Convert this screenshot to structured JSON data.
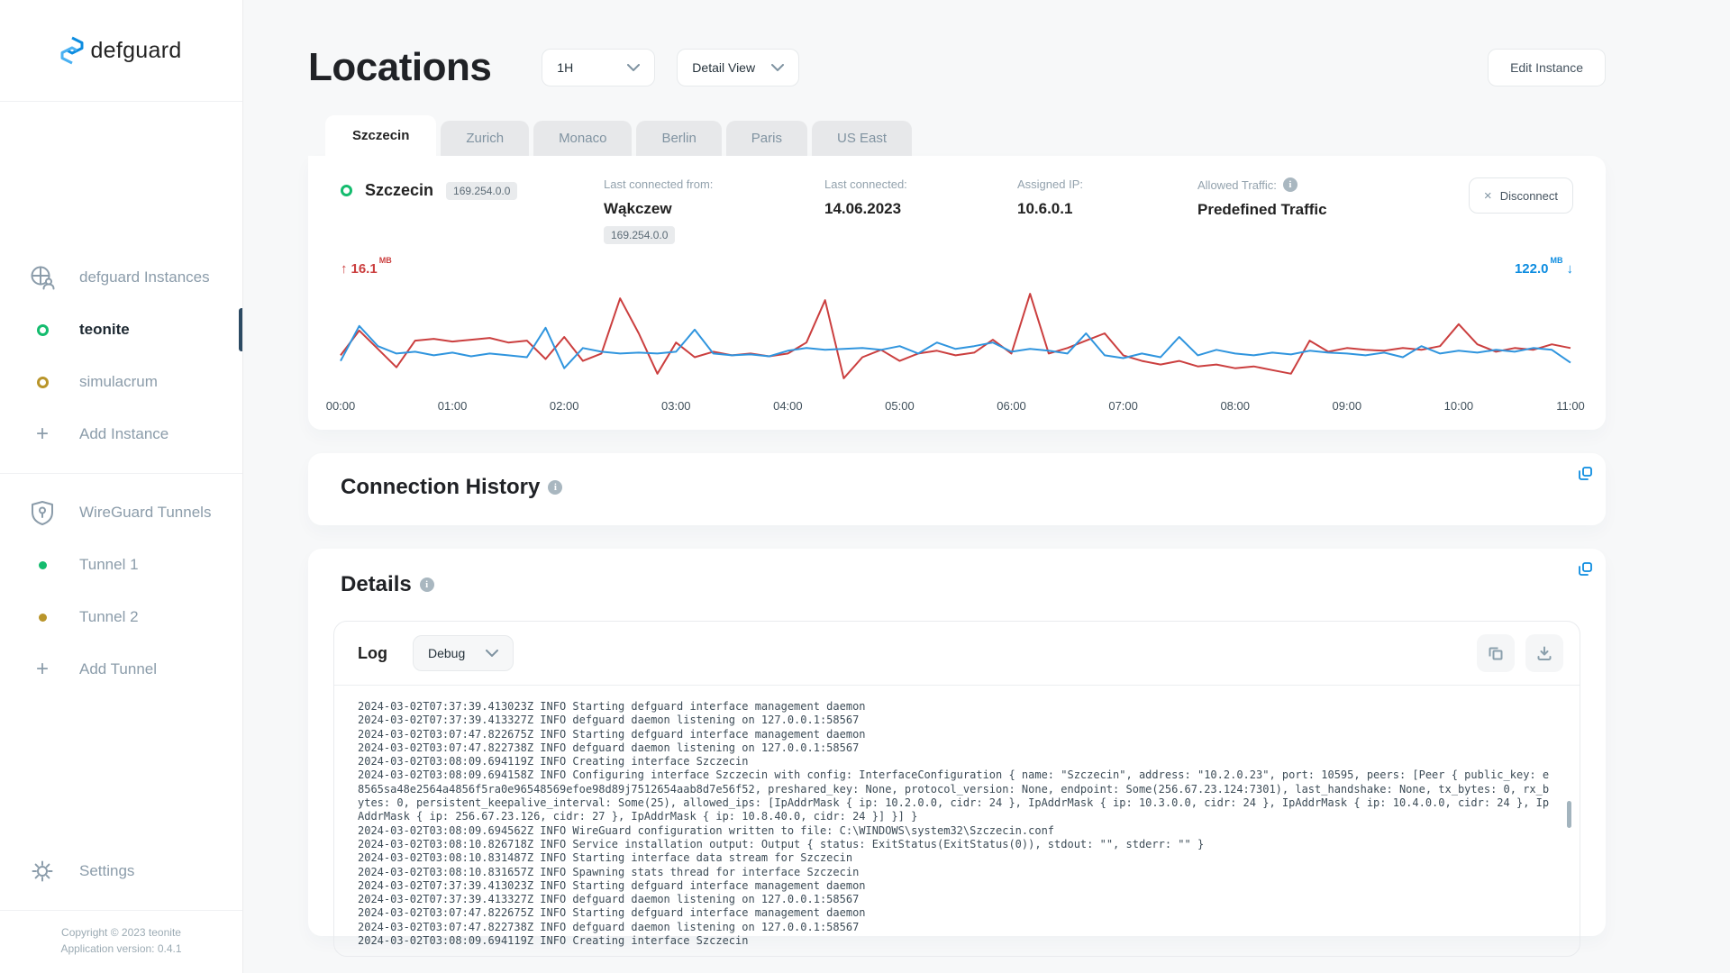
{
  "app": {
    "name": "defguard",
    "copyright": "Copyright © 2023 teonite",
    "version_line": "Application version: 0.4.1"
  },
  "colors": {
    "accent_blue": "#0c8ce0",
    "upload_red": "#cb3f3f",
    "download_blue": "#3095de",
    "status_green": "#14bc6e",
    "status_yellow": "#b9952a",
    "active_bar": "#2c4a63"
  },
  "sidebar": {
    "instances_header": "defguard Instances",
    "instances": [
      {
        "label": "teonite",
        "status": "green",
        "active": true
      },
      {
        "label": "simulacrum",
        "status": "yellow",
        "active": false
      }
    ],
    "add_instance_label": "Add Instance",
    "tunnels_header": "WireGuard Tunnels",
    "tunnels": [
      {
        "label": "Tunnel 1",
        "status": "green"
      },
      {
        "label": "Tunnel 2",
        "status": "yellow"
      }
    ],
    "add_tunnel_label": "Add Tunnel",
    "settings_label": "Settings",
    "plus_glyph": "+"
  },
  "header": {
    "title": "Locations",
    "period_select_value": "1H",
    "view_select_value": "Detail View",
    "edit_instance_label": "Edit Instance"
  },
  "tabs": [
    {
      "label": "Szczecin",
      "active": true
    },
    {
      "label": "Zurich",
      "active": false
    },
    {
      "label": "Monaco",
      "active": false
    },
    {
      "label": "Berlin",
      "active": false
    },
    {
      "label": "Paris",
      "active": false
    },
    {
      "label": "US East",
      "active": false
    }
  ],
  "location_card": {
    "name": "Szczecin",
    "ip_badge": "169.254.0.0",
    "fields": [
      {
        "label": "Last connected from:",
        "value": "Wąkczew",
        "badge": "169.254.0.0"
      },
      {
        "label": "Last connected:",
        "value": "14.06.2023"
      },
      {
        "label": "Assigned IP:",
        "value": "10.6.0.1"
      },
      {
        "label": "Allowed Traffic:",
        "value": "Predefined Traffic"
      }
    ],
    "disconnect_label": "Disconnect",
    "x_glyph": "×",
    "upload_value": "16.1",
    "upload_unit": "MB",
    "download_value": "122.0",
    "download_unit": "MB",
    "upload_arrow": "↑",
    "download_arrow": "↓"
  },
  "chart_data": {
    "type": "line",
    "x_tick_labels": [
      "00:00",
      "01:00",
      "02:00",
      "03:00",
      "04:00",
      "05:00",
      "06:00",
      "07:00",
      "08:00",
      "09:00",
      "10:00",
      "11:00"
    ],
    "x_range_hours": [
      0,
      11
    ],
    "y_axis": "hidden (relative scale 0-100 estimated from pixel heights)",
    "grid": false,
    "legend": "none (red = upload 16.1 MB, blue = download 122.0 MB)",
    "series": [
      {
        "name": "upload",
        "color": "#cb3f3f",
        "values": [
          28,
          55,
          35,
          15,
          44,
          46,
          43,
          45,
          47,
          42,
          44,
          24,
          48,
          22,
          30,
          90,
          52,
          8,
          42,
          26,
          32,
          28,
          30,
          27,
          30,
          42,
          88,
          3,
          26,
          34,
          22,
          30,
          33,
          28,
          31,
          45,
          30,
          95,
          30,
          36,
          44,
          52,
          28,
          22,
          18,
          22,
          16,
          18,
          14,
          16,
          12,
          8,
          44,
          32,
          36,
          34,
          33,
          36,
          34,
          38,
          62,
          40,
          32,
          36,
          34,
          40,
          36
        ]
      },
      {
        "name": "download",
        "color": "#3095de",
        "values": [
          22,
          60,
          38,
          30,
          32,
          28,
          31,
          27,
          30,
          28,
          26,
          58,
          14,
          36,
          32,
          30,
          31,
          30,
          32,
          56,
          30,
          28,
          29,
          27,
          33,
          36,
          34,
          35,
          36,
          34,
          38,
          30,
          42,
          35,
          38,
          42,
          32,
          35,
          33,
          30,
          52,
          28,
          25,
          30,
          26,
          48,
          28,
          34,
          30,
          28,
          31,
          29,
          33,
          31,
          30,
          28,
          31,
          26,
          38,
          30,
          33,
          31,
          34,
          32,
          36,
          34,
          20
        ]
      }
    ]
  },
  "connection_history": {
    "title": "Connection History"
  },
  "details": {
    "title": "Details",
    "log": {
      "label": "Log",
      "level_select_value": "Debug",
      "lines": [
        "2024-03-02T07:37:39.413023Z INFO Starting defguard interface management daemon",
        "2024-03-02T07:37:39.413327Z INFO defguard daemon listening on 127.0.0.1:58567",
        "2024-03-02T03:07:47.822675Z INFO Starting defguard interface management daemon",
        "2024-03-02T03:07:47.822738Z INFO defguard daemon listening on 127.0.0.1:58567",
        "2024-03-02T03:08:09.694119Z INFO Creating interface Szczecin",
        "2024-03-02T03:08:09.694158Z INFO Configuring interface Szczecin with config: InterfaceConfiguration { name: \"Szczecin\", address: \"10.2.0.23\", port: 10595, peers: [Peer { public_key: e8565sa48e2564a4856f5ra0e96548569efoe98d89j7512654aab8d7e56f52, preshared_key: None, protocol_version: None, endpoint: Some(256.67.23.124:7301), last_handshake: None, tx_bytes: 0, rx_bytes: 0, persistent_keepalive_interval: Some(25), allowed_ips: [IpAddrMask { ip: 10.2.0.0, cidr: 24 }, IpAddrMask { ip: 10.3.0.0, cidr: 24 }, IpAddrMask { ip: 10.4.0.0, cidr: 24 }, IpAddrMask { ip: 256.67.23.126, cidr: 27 }, IpAddrMask { ip: 10.8.40.0, cidr: 24 }] }] }",
        "2024-03-02T03:08:09.694562Z INFO WireGuard configuration written to file: C:\\WINDOWS\\system32\\Szczecin.conf",
        "2024-03-02T03:08:10.826718Z INFO Service installation output: Output { status: ExitStatus(ExitStatus(0)), stdout: \"\", stderr: \"\" }",
        "2024-03-02T03:08:10.831487Z INFO Starting interface data stream for Szczecin",
        "2024-03-02T03:08:10.831657Z INFO Spawning stats thread for interface Szczecin",
        "2024-03-02T07:37:39.413023Z INFO Starting defguard interface management daemon",
        "2024-03-02T07:37:39.413327Z INFO defguard daemon listening on 127.0.0.1:58567",
        "2024-03-02T03:07:47.822675Z INFO Starting defguard interface management daemon",
        "2024-03-02T03:07:47.822738Z INFO defguard daemon listening on 127.0.0.1:58567",
        "2024-03-02T03:08:09.694119Z INFO Creating interface Szczecin"
      ]
    }
  }
}
